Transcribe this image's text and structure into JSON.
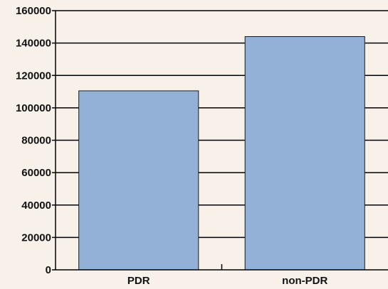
{
  "colors": {
    "background": "#f8f1ea",
    "bar_fill": "#93b1d6",
    "bar_stroke": "#1a1a1a",
    "grid": "#000000",
    "axis": "#000000"
  },
  "chart_data": {
    "type": "bar",
    "categories": [
      "PDR",
      "non-PDR"
    ],
    "values": [
      110500,
      144000
    ],
    "ylim": [
      0,
      160000
    ],
    "yticks": [
      "0",
      "20000",
      "40000",
      "60000",
      "80000",
      "100000",
      "120000",
      "140000",
      "160000"
    ],
    "grid": true,
    "legend": "none"
  }
}
